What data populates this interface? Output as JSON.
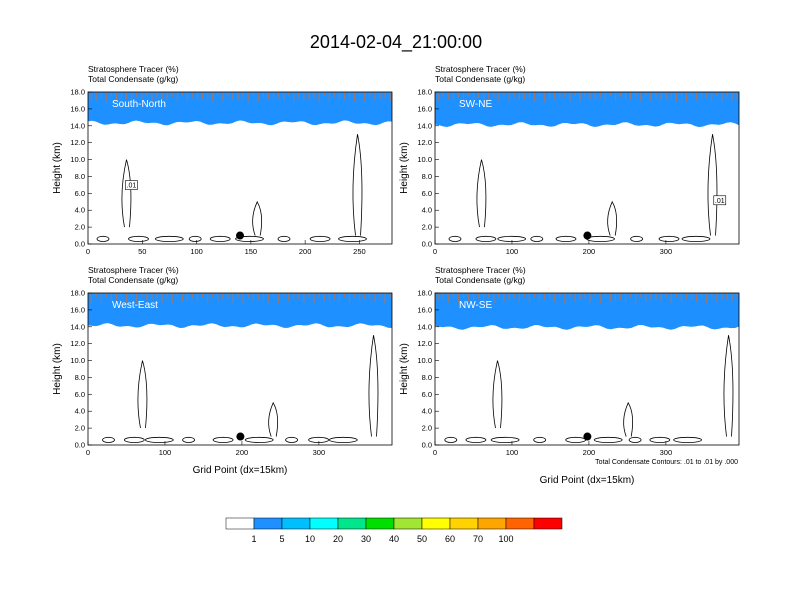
{
  "figure": {
    "title": "2014-02-04_21:00:00",
    "footnote": "Total Condensate Contours: .01 to .01 by .000",
    "colorbar": {
      "levels": [
        "1",
        "5",
        "10",
        "20",
        "30",
        "40",
        "50",
        "60",
        "70",
        "100"
      ],
      "colors": [
        "#ffffff",
        "#1e90ff",
        "#00bfff",
        "#00ffff",
        "#00e68c",
        "#00e000",
        "#a0e632",
        "#ffff00",
        "#ffd200",
        "#ffa500",
        "#ff6400",
        "#ff0000"
      ]
    }
  },
  "chart_data": [
    {
      "type": "heatmap",
      "panel_label": "South-North",
      "header_line1": "Stratosphere Tracer   (%)",
      "header_line2": "Total Condensate   (g/kg)",
      "ylabel": "Height (km)",
      "xlabel": "",
      "xlim": [
        0,
        280
      ],
      "ylim": [
        0,
        18
      ],
      "xticks": [
        "0",
        "50",
        "100",
        "150",
        "200",
        "250"
      ],
      "xtick_values": [
        0,
        50,
        100,
        150,
        200,
        250
      ],
      "yticks": [
        "0.0",
        "2.0",
        "4.0",
        "6.0",
        "8.0",
        "10.0",
        "12.0",
        "14.0",
        "16.0",
        "18.0"
      ],
      "tracer_top_km": 16.0,
      "marker_x": 140,
      "marker_y": 1.0,
      "contour_label": ".01"
    },
    {
      "type": "heatmap",
      "panel_label": "SW-NE",
      "header_line1": "Stratosphere Tracer   (%)",
      "header_line2": "Total Condensate   (g/kg)",
      "ylabel": "Height (km)",
      "xlabel": "",
      "xlim": [
        0,
        395
      ],
      "ylim": [
        0,
        18
      ],
      "xticks": [
        "0",
        "100",
        "200",
        "300"
      ],
      "xtick_values": [
        0,
        100,
        200,
        300
      ],
      "yticks": [
        "0.0",
        "2.0",
        "4.0",
        "6.0",
        "8.0",
        "10.0",
        "12.0",
        "14.0",
        "16.0",
        "18.0"
      ],
      "tracer_top_km": 15.8,
      "marker_x": 198,
      "marker_y": 1.0,
      "contour_label": ".01"
    },
    {
      "type": "heatmap",
      "panel_label": "West-East",
      "header_line1": "Stratosphere Tracer   (%)",
      "header_line2": "Total Condensate   (g/kg)",
      "ylabel": "Height (km)",
      "xlabel": "Grid Point (dx=15km)",
      "xlim": [
        0,
        395
      ],
      "ylim": [
        0,
        18
      ],
      "xticks": [
        "0",
        "100",
        "200",
        "300"
      ],
      "xtick_values": [
        0,
        100,
        200,
        300
      ],
      "yticks": [
        "0.0",
        "2.0",
        "4.0",
        "6.0",
        "8.0",
        "10.0",
        "12.0",
        "14.0",
        "16.0",
        "18.0"
      ],
      "tracer_top_km": 15.8,
      "marker_x": 198,
      "marker_y": 1.0,
      "contour_label": ""
    },
    {
      "type": "heatmap",
      "panel_label": "NW-SE",
      "header_line1": "Stratosphere Tracer   (%)",
      "header_line2": "Total Condensate   (g/kg)",
      "ylabel": "Height (km)",
      "xlabel": "Grid Point (dx=15km)",
      "xlim": [
        0,
        395
      ],
      "ylim": [
        0,
        18
      ],
      "xticks": [
        "0",
        "100",
        "200",
        "300"
      ],
      "xtick_values": [
        0,
        100,
        200,
        300
      ],
      "yticks": [
        "0.0",
        "2.0",
        "4.0",
        "6.0",
        "8.0",
        "10.0",
        "12.0",
        "14.0",
        "16.0",
        "18.0"
      ],
      "tracer_top_km": 15.6,
      "marker_x": 198,
      "marker_y": 1.0,
      "contour_label": ""
    }
  ]
}
